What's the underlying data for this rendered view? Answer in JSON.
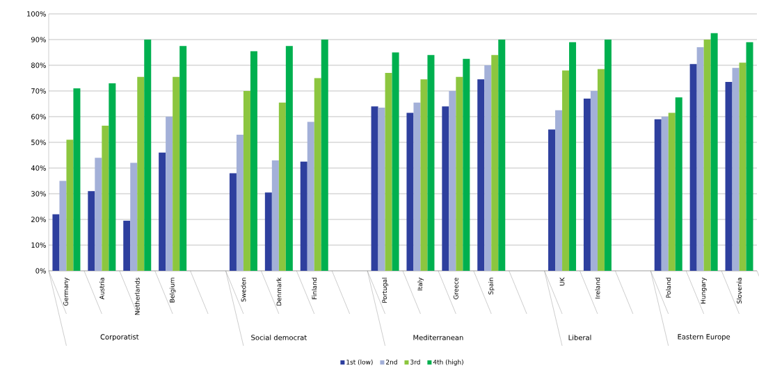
{
  "chart_data": {
    "type": "bar",
    "categories": [
      "Germany",
      "Austria",
      "Netherlands",
      "Belgium",
      null,
      "Sweden",
      "Denmark",
      "Finland",
      null,
      "Portugal",
      "Italy",
      "Greece",
      "Spain",
      null,
      "UK",
      "Ireland",
      null,
      "Poland",
      "Hungary",
      "Slovenia"
    ],
    "series": [
      {
        "name": "1st (low)",
        "color": "#2e3f9e",
        "values": [
          22,
          31,
          19.5,
          46,
          null,
          38,
          30.5,
          42.5,
          null,
          64,
          61.5,
          64,
          74.5,
          null,
          55,
          67,
          null,
          59,
          80.5,
          73.5
        ]
      },
      {
        "name": "2nd",
        "color": "#a3b0d8",
        "values": [
          35,
          44,
          42,
          60,
          null,
          53,
          43,
          58,
          null,
          63.5,
          65.5,
          70,
          80,
          null,
          62.5,
          70,
          null,
          60,
          87,
          79
        ]
      },
      {
        "name": "3rd",
        "color": "#8cc63f",
        "values": [
          51,
          56.5,
          75.5,
          75.5,
          null,
          70,
          65.5,
          75,
          null,
          77,
          74.5,
          75.5,
          84,
          null,
          78,
          78.5,
          null,
          61.5,
          90,
          81
        ]
      },
      {
        "name": "4th (high)",
        "color": "#00b04f",
        "values": [
          71,
          73,
          90,
          87.5,
          null,
          85.5,
          87.5,
          90,
          null,
          85,
          84,
          82.5,
          90,
          null,
          89,
          90,
          null,
          67.5,
          92.5,
          89
        ]
      }
    ],
    "annotations": [
      "Corporatist",
      "Social democrat",
      "Mediterranean",
      "Liberal",
      "Eastern Europe"
    ],
    "ylim": [
      0,
      100
    ],
    "yticks": [
      {
        "value": 0,
        "label": "0%"
      },
      {
        "value": 10,
        "label": "10%"
      },
      {
        "value": 20,
        "label": "20%"
      },
      {
        "value": 30,
        "label": "30%"
      },
      {
        "value": 40,
        "label": "40%"
      },
      {
        "value": 50,
        "label": "50%"
      },
      {
        "value": 60,
        "label": "60%"
      },
      {
        "value": 70,
        "label": "70%"
      },
      {
        "value": 80,
        "label": "80%"
      },
      {
        "value": 90,
        "label": "90%"
      },
      {
        "value": 100,
        "label": "100%"
      }
    ],
    "grid": "y",
    "legend": "bottom"
  }
}
